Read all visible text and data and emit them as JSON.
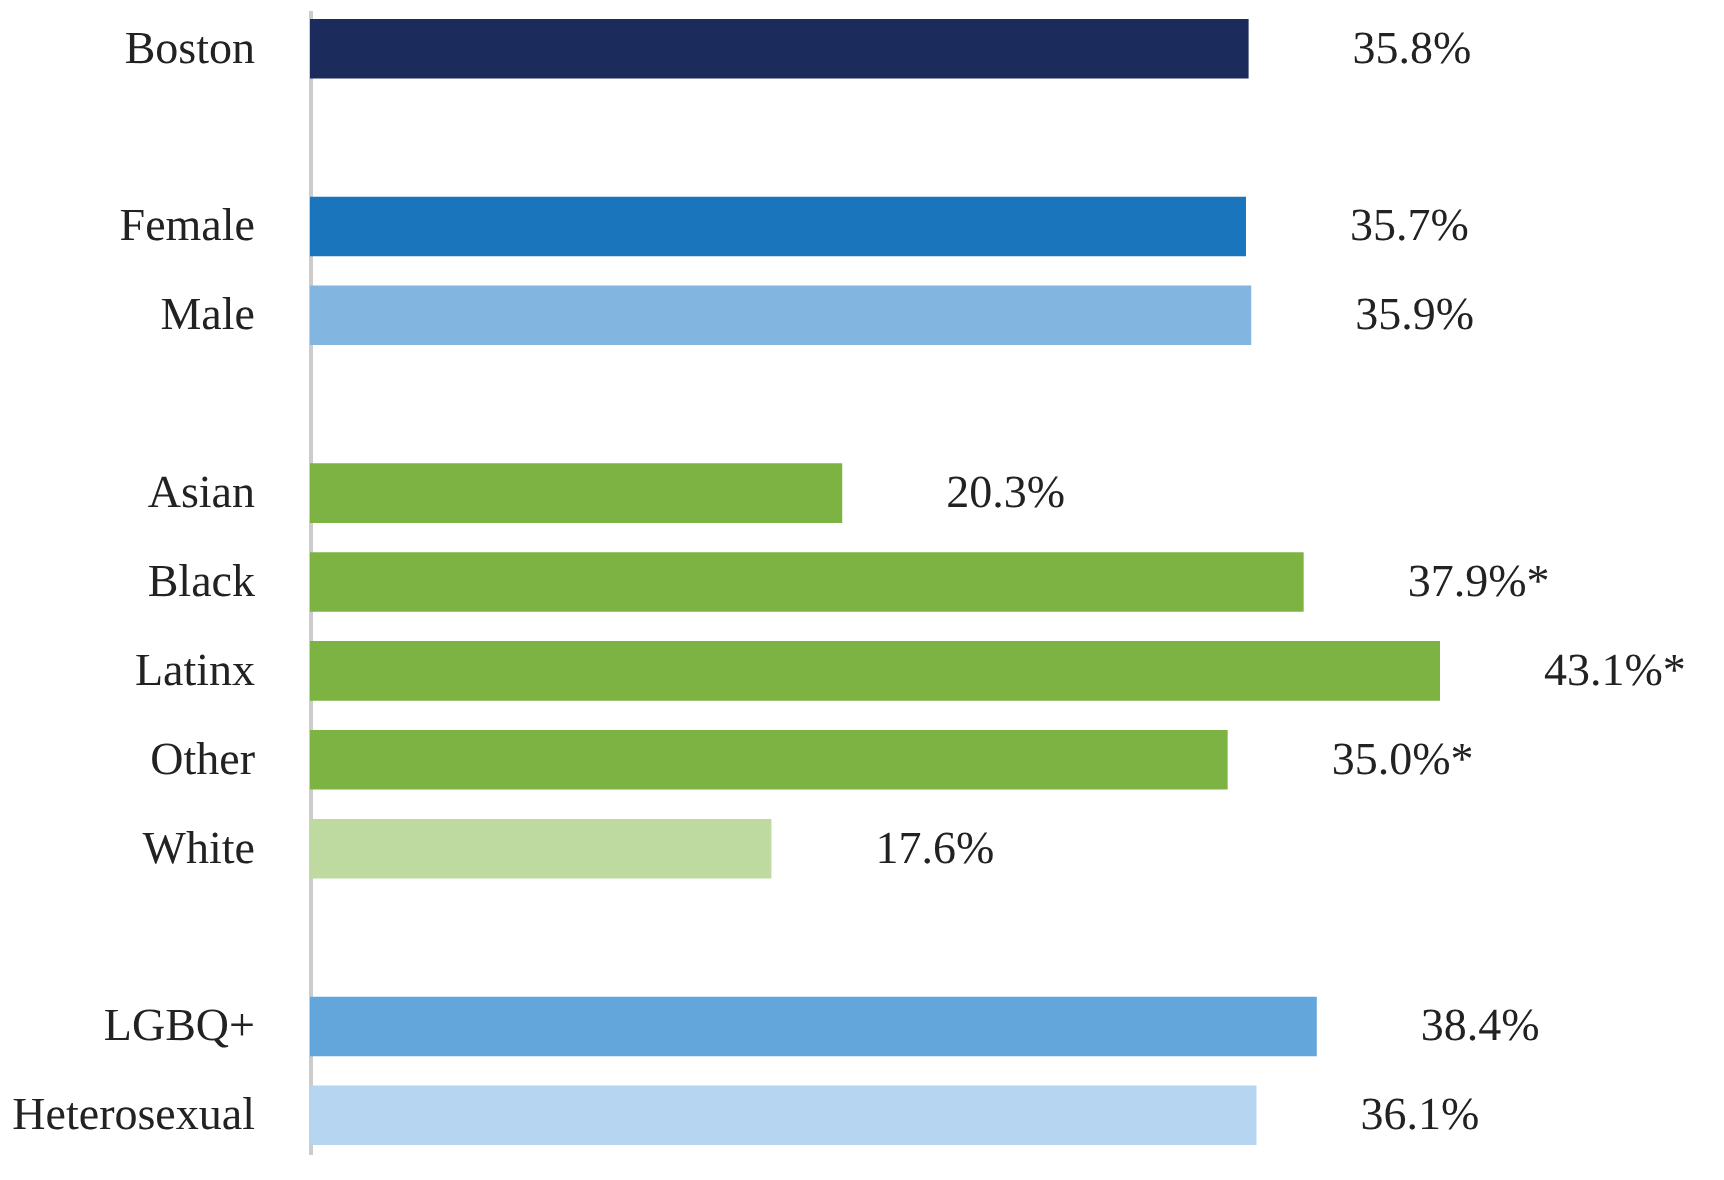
{
  "chart_data": {
    "type": "bar",
    "orientation": "horizontal",
    "categories": [
      "Boston",
      null,
      "Female",
      "Male",
      null,
      "Asian",
      "Black",
      "Latinx",
      "Other",
      "White",
      null,
      "LGBQ+",
      "Heterosexual"
    ],
    "values": [
      35.8,
      null,
      35.7,
      35.9,
      null,
      20.3,
      37.9,
      43.1,
      35.0,
      17.6,
      null,
      38.4,
      36.1
    ],
    "colors": [
      "#1b2c5c",
      null,
      "#1a75bc",
      "#82b5e0",
      null,
      "#7cb342",
      "#7cb342",
      "#7cb342",
      "#7cb342",
      "#bedaa0",
      null,
      "#62a6dc",
      "#b5d5f0"
    ],
    "value_labels": [
      "35.8%",
      null,
      "35.7%",
      "35.9%",
      null,
      "20.3%",
      "37.9%*",
      "43.1%*",
      "35.0%*",
      "17.6%",
      null,
      "38.4%",
      "36.1%"
    ]
  }
}
